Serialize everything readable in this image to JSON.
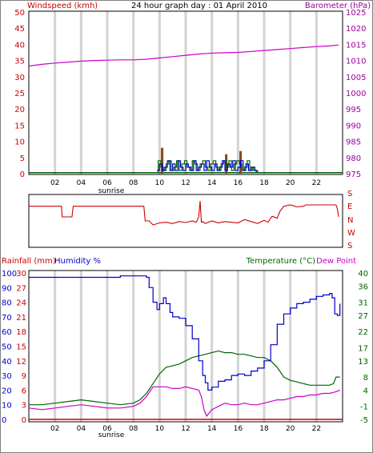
{
  "header": {
    "left_title": "Windspeed (kmh)",
    "center_title": "24 hour graph day : 01 April 2010",
    "right_title": "Barometer (hPa)"
  },
  "sunrise_label": "sunrise",
  "x_ticks": [
    "02",
    "04",
    "06",
    "08",
    "10",
    "12",
    "14",
    "16",
    "18",
    "20",
    "22"
  ],
  "colors": {
    "wind": "#006400",
    "gust": "#0000cc",
    "gust2": "#8b4513",
    "baro": "#cc00cc",
    "dir": "#cc0000",
    "humidity": "#0000cc",
    "temp": "#006400",
    "dew": "#cc00cc",
    "rain": "#cc0000",
    "red_axis": "#cc0000",
    "violet_axis": "#990099",
    "green_axis": "#006400",
    "grid": "#d3d3d3"
  },
  "chart_data": [
    {
      "type": "line",
      "title": "24 hour graph day : 01 April 2010",
      "ylabel_left": "Windspeed (kmh)",
      "ylabel_right": "Barometer (hPa)",
      "x_range": [
        0,
        24
      ],
      "y_left_range": [
        0,
        50
      ],
      "y_right_range": [
        975,
        1025
      ],
      "y_left_ticks": [
        0,
        5,
        10,
        15,
        20,
        25,
        30,
        35,
        40,
        45,
        50
      ],
      "y_right_ticks": [
        975,
        980,
        985,
        990,
        995,
        1000,
        1005,
        1010,
        1015,
        1020,
        1025
      ],
      "series": [
        {
          "name": "Barometer (hPa)",
          "axis": "right",
          "x": [
            0,
            1,
            2,
            3,
            4,
            5,
            6,
            7,
            8,
            9,
            10,
            11,
            12,
            13,
            14,
            15,
            16,
            17,
            18,
            19,
            20,
            21,
            22,
            23,
            23.7
          ],
          "y": [
            1008.3,
            1008.8,
            1009.2,
            1009.5,
            1009.8,
            1010.0,
            1010.1,
            1010.2,
            1010.2,
            1010.4,
            1010.8,
            1011.2,
            1011.6,
            1012.0,
            1012.3,
            1012.4,
            1012.5,
            1012.8,
            1013.1,
            1013.4,
            1013.7,
            1014.0,
            1014.3,
            1014.5,
            1014.8
          ]
        },
        {
          "name": "Windspeed (kmh)",
          "axis": "left",
          "x": [
            0,
            9.8,
            9.9,
            10.1,
            10.3,
            10.5,
            10.7,
            10.9,
            11.1,
            11.3,
            11.5,
            11.7,
            11.9,
            12.1,
            12.3,
            12.5,
            12.7,
            12.9,
            13.1,
            13.3,
            13.5,
            13.7,
            13.9,
            14.1,
            14.3,
            14.5,
            14.7,
            14.9,
            15.1,
            15.3,
            15.5,
            15.7,
            15.9,
            16.1,
            16.3,
            16.5,
            16.7,
            16.9,
            17.1,
            17.3,
            17.5,
            24
          ],
          "y": [
            0.3,
            0.3,
            4,
            2,
            1,
            3,
            4,
            1,
            2,
            4,
            1,
            3,
            4,
            2,
            1,
            4,
            3,
            1,
            3,
            4,
            2,
            1,
            3,
            4,
            2,
            1,
            3,
            4,
            2,
            4,
            1,
            3,
            4,
            3,
            1,
            2,
            4,
            1,
            2,
            1,
            0.3,
            0.3
          ]
        },
        {
          "name": "Gust (kmh)",
          "axis": "left",
          "x": [
            9.8,
            10.0,
            10.2,
            10.4,
            10.6,
            10.8,
            11.0,
            11.2,
            11.4,
            11.6,
            11.8,
            12.0,
            12.2,
            12.4,
            12.6,
            12.8,
            13.0,
            13.2,
            13.4,
            13.6,
            13.8,
            14.0,
            14.2,
            14.4,
            14.6,
            14.8,
            15.0,
            15.2,
            15.4,
            15.6,
            15.8,
            16.0,
            16.2,
            16.4,
            16.6,
            16.8,
            17.0,
            17.2,
            17.4
          ],
          "y": [
            1,
            3,
            1,
            2,
            4,
            1,
            3,
            1,
            4,
            2,
            1,
            3,
            2,
            1,
            4,
            1,
            2,
            3,
            1,
            4,
            2,
            1,
            3,
            1,
            2,
            4,
            1,
            3,
            2,
            4,
            1,
            2,
            4,
            1,
            3,
            1,
            2,
            1,
            0.5
          ]
        },
        {
          "name": "Max gust bars (kmh)",
          "axis": "left",
          "x": [
            10.2,
            15.1,
            16.2
          ],
          "y": [
            8,
            6,
            7
          ]
        }
      ]
    },
    {
      "type": "line",
      "title": "",
      "ylabel_right_ticks": [
        "S",
        "E",
        "N",
        "W",
        "S"
      ],
      "x_range": [
        0,
        24
      ],
      "y_range": [
        0,
        360
      ],
      "series": [
        {
          "name": "Wind direction",
          "x": [
            0,
            2.5,
            2.55,
            3.3,
            3.4,
            5.5,
            8.2,
            8.8,
            8.9,
            9.2,
            9.5,
            10,
            10.5,
            11,
            11.5,
            12,
            12.5,
            12.8,
            13,
            13.1,
            13.2,
            13.3,
            13.5,
            14,
            14.5,
            15,
            15.5,
            16,
            16.5,
            17,
            17.5,
            18,
            18.3,
            18.6,
            19,
            19.2,
            19.5,
            20,
            20.5,
            21,
            21.2,
            21.5,
            22,
            22.5,
            23,
            23.5,
            23.6,
            23.7
          ],
          "y": [
            290,
            290,
            210,
            210,
            290,
            290,
            290,
            290,
            180,
            180,
            150,
            165,
            170,
            160,
            175,
            168,
            180,
            170,
            210,
            330,
            170,
            175,
            160,
            180,
            165,
            175,
            170,
            165,
            190,
            175,
            160,
            185,
            170,
            215,
            200,
            250,
            290,
            300,
            285,
            290,
            300,
            300,
            300,
            300,
            300,
            300,
            270,
            210
          ]
        }
      ]
    },
    {
      "type": "line",
      "title": "",
      "ylabel_left_1": "Rainfall (mm)",
      "ylabel_left_2": "Humidity %",
      "ylabel_right_1": "Temperature (°C)",
      "ylabel_right_2": "Dew Point",
      "x_range": [
        0,
        24
      ],
      "humidity_ticks": [
        0,
        10,
        20,
        30,
        40,
        50,
        60,
        70,
        80,
        90,
        100
      ],
      "rain_ticks": [
        0,
        3,
        6,
        9,
        12,
        15,
        18,
        21,
        24,
        27,
        30
      ],
      "temp_ticks": [
        -5,
        -1,
        4,
        8,
        13,
        17,
        22,
        27,
        31,
        36,
        40
      ],
      "series": [
        {
          "name": "Humidity %",
          "axis": "humidity",
          "x": [
            0,
            1,
            2,
            3,
            4,
            5,
            6,
            7,
            8,
            8.5,
            9,
            9.2,
            9.5,
            9.8,
            10,
            10.3,
            10.5,
            10.8,
            11,
            11.5,
            12,
            12.5,
            13,
            13.3,
            13.5,
            13.7,
            14,
            14.5,
            15,
            15.5,
            16,
            16.5,
            17,
            17.5,
            18,
            18.5,
            19,
            19.5,
            20,
            20.5,
            21,
            21.5,
            22,
            22.5,
            23,
            23.2,
            23.4,
            23.6,
            23.8
          ],
          "y": [
            97,
            97,
            97,
            97,
            97,
            97,
            97,
            98,
            98,
            98,
            97,
            90,
            80,
            75,
            79,
            83,
            79,
            73,
            70,
            69,
            64,
            55,
            40,
            30,
            25,
            20,
            22,
            26,
            27,
            30,
            31,
            30,
            33,
            35,
            40,
            51,
            65,
            72,
            76,
            79,
            80,
            82,
            84,
            85,
            86,
            83,
            72,
            71,
            79
          ]
        },
        {
          "name": "Temperature (°C)",
          "axis": "temp",
          "x": [
            0,
            1,
            2,
            3,
            4,
            5,
            6,
            7,
            8,
            8.5,
            9,
            9.5,
            10,
            10.5,
            11,
            11.5,
            12,
            12.5,
            13,
            13.5,
            14,
            14.5,
            15,
            15.5,
            16,
            16.5,
            17,
            17.5,
            18,
            18.5,
            19,
            19.5,
            20,
            20.5,
            21,
            21.5,
            22,
            22.5,
            23,
            23.3,
            23.5,
            23.8
          ],
          "y": [
            -0.5,
            -0.5,
            0,
            0.5,
            1,
            0.5,
            0,
            -0.5,
            0,
            1,
            3,
            6,
            9,
            11,
            11.5,
            12,
            13,
            14,
            14.5,
            15,
            15.5,
            16,
            15.5,
            15.5,
            15,
            15,
            14.5,
            14,
            14,
            13,
            11,
            8,
            7,
            6.5,
            6,
            5.5,
            5.5,
            5.5,
            5.5,
            6,
            8,
            8
          ]
        },
        {
          "name": "Dew Point",
          "axis": "temp",
          "x": [
            0,
            1,
            2,
            3,
            4,
            5,
            6,
            7,
            8,
            8.5,
            9,
            9.5,
            10,
            10.5,
            11,
            11.5,
            12,
            12.5,
            13,
            13.2,
            13.4,
            13.6,
            13.8,
            14,
            14.5,
            15,
            15.5,
            16,
            16.5,
            17,
            17.5,
            18,
            18.5,
            19,
            19.5,
            20,
            20.5,
            21,
            21.5,
            22,
            22.5,
            23,
            23.5,
            23.8
          ],
          "y": [
            -1.5,
            -2,
            -1.5,
            -1,
            -0.5,
            -1,
            -1.5,
            -1.5,
            -1,
            0,
            2,
            5,
            5,
            5,
            4.5,
            4.5,
            5,
            4.5,
            4,
            2,
            -2,
            -4,
            -3,
            -2,
            -1,
            0,
            -0.5,
            -0.5,
            0,
            -0.5,
            -0.5,
            0,
            0.5,
            1,
            1,
            1.5,
            2,
            2,
            2.5,
            2.5,
            3,
            3,
            3.5,
            4
          ]
        },
        {
          "name": "Rainfall (mm)",
          "axis": "rain",
          "x": [
            0,
            24
          ],
          "y": [
            0,
            0
          ]
        }
      ]
    }
  ]
}
